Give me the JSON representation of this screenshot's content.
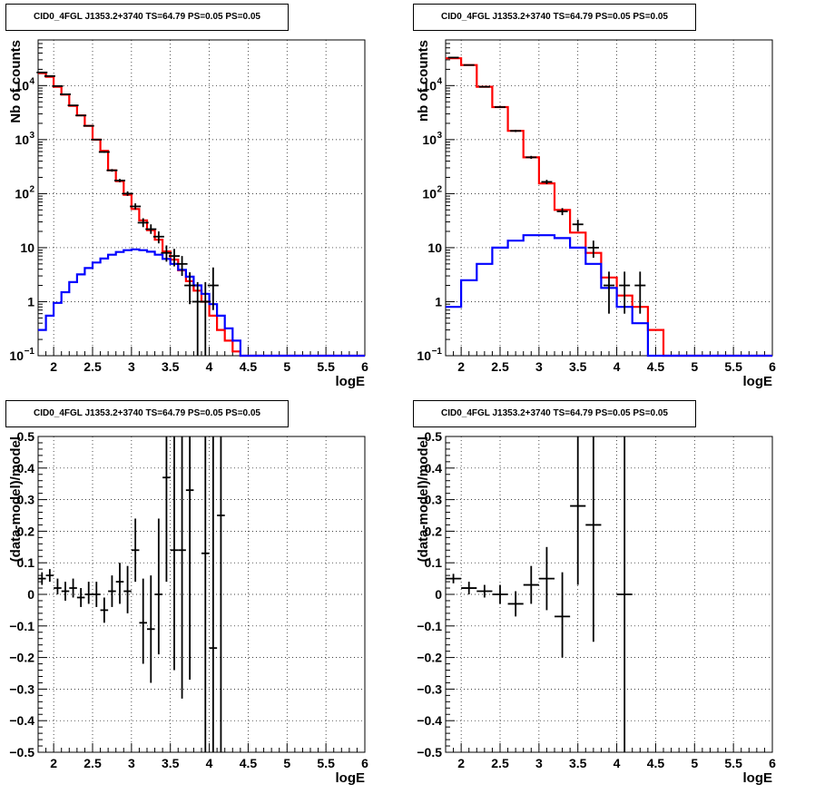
{
  "colors": {
    "data": "#000000",
    "total_model": "#ff0000",
    "source_model": "#0000ff",
    "grid": "#000000"
  },
  "chart_data": [
    {
      "type": "line",
      "title": "CID0_4FGL J1353.2+3740 TS=64.79 PS=0.05 PS=0.05",
      "xlabel": "logE",
      "ylabel": "Nb of counts",
      "xlim": [
        1.8,
        6
      ],
      "ylim": [
        0.1,
        70000
      ],
      "yscale": "log",
      "grid": true,
      "x_ticks": [
        "2",
        "2.5",
        "3",
        "3.5",
        "4",
        "4.5",
        "5",
        "5.5",
        "6"
      ],
      "y_ticks": [
        {
          "v": 0.1,
          "b": "10",
          "e": "−1"
        },
        {
          "v": 1,
          "b": "1",
          "e": ""
        },
        {
          "v": 10,
          "b": "10",
          "e": ""
        },
        {
          "v": 100,
          "b": "10",
          "e": "2"
        },
        {
          "v": 1000,
          "b": "10",
          "e": "3"
        },
        {
          "v": 10000,
          "b": "10",
          "e": "4"
        }
      ],
      "bin_edges": [
        1.8,
        1.9,
        2.0,
        2.1,
        2.2,
        2.3,
        2.4,
        2.5,
        2.6,
        2.7,
        2.8,
        2.9,
        3.0,
        3.1,
        3.2,
        3.3,
        3.4,
        3.5,
        3.6,
        3.7,
        3.8,
        3.9,
        4.0,
        4.1,
        4.2,
        4.3,
        4.4,
        4.5,
        4.6,
        4.7,
        4.8,
        4.9,
        5.0,
        5.1,
        5.2,
        5.3,
        5.4,
        5.5,
        5.6,
        5.7,
        5.8,
        5.9,
        6.0
      ],
      "series": [
        {
          "kind": "step",
          "color": "#ff0000",
          "values": [
            17000,
            14500,
            9500,
            6800,
            4200,
            2800,
            1800,
            1000,
            620,
            270,
            170,
            95,
            52,
            32,
            21,
            14,
            8.5,
            6,
            3.8,
            2.4,
            1.6,
            1.0,
            0.55,
            0.3,
            0.19,
            0.12,
            0.1,
            0.1,
            0.1,
            0.1,
            0.1,
            0.1,
            0.1,
            0.1,
            0.1,
            0.1,
            0.1,
            0.1,
            0.1,
            0.1,
            0.1,
            0.1
          ]
        },
        {
          "kind": "step",
          "color": "#0000ff",
          "values": [
            0.3,
            0.55,
            0.95,
            1.5,
            2.3,
            3.2,
            4.2,
            5.3,
            6.3,
            7.4,
            8.3,
            9.0,
            9.3,
            9.0,
            8.4,
            7.4,
            6.2,
            5.0,
            3.9,
            2.9,
            2.0,
            1.4,
            0.9,
            0.55,
            0.32,
            0.19,
            0.1,
            0.1,
            0.1,
            0.1,
            0.1,
            0.1,
            0.1,
            0.1,
            0.1,
            0.1,
            0.1,
            0.1,
            0.1,
            0.1,
            0.1,
            0.1
          ]
        },
        {
          "kind": "errorbars",
          "color": "#000000",
          "points": [
            {
              "x": 1.85,
              "y": 17500,
              "lo": 17300,
              "hi": 17700
            },
            {
              "x": 1.95,
              "y": 15000,
              "lo": 14800,
              "hi": 15200
            },
            {
              "x": 2.05,
              "y": 9800,
              "lo": 9600,
              "hi": 10000
            },
            {
              "x": 2.15,
              "y": 6900,
              "lo": 6750,
              "hi": 7050
            },
            {
              "x": 2.25,
              "y": 4300,
              "lo": 4200,
              "hi": 4400
            },
            {
              "x": 2.35,
              "y": 2800,
              "lo": 2740,
              "hi": 2860
            },
            {
              "x": 2.45,
              "y": 1800,
              "lo": 1760,
              "hi": 1840
            },
            {
              "x": 2.55,
              "y": 1000,
              "lo": 970,
              "hi": 1030
            },
            {
              "x": 2.65,
              "y": 590,
              "lo": 570,
              "hi": 610
            },
            {
              "x": 2.75,
              "y": 270,
              "lo": 255,
              "hi": 285
            },
            {
              "x": 2.85,
              "y": 175,
              "lo": 163,
              "hi": 187
            },
            {
              "x": 2.95,
              "y": 100,
              "lo": 91,
              "hi": 110
            },
            {
              "x": 3.05,
              "y": 58,
              "lo": 51,
              "hi": 66
            },
            {
              "x": 3.15,
              "y": 29,
              "lo": 24,
              "hi": 35
            },
            {
              "x": 3.25,
              "y": 22,
              "lo": 18,
              "hi": 27
            },
            {
              "x": 3.35,
              "y": 16,
              "lo": 12,
              "hi": 20
            },
            {
              "x": 3.45,
              "y": 8,
              "lo": 5.5,
              "hi": 11
            },
            {
              "x": 3.55,
              "y": 7,
              "lo": 4.5,
              "hi": 9.5
            },
            {
              "x": 3.65,
              "y": 5,
              "lo": 3,
              "hi": 7
            },
            {
              "x": 3.75,
              "y": 2,
              "lo": 0.9,
              "hi": 3.5
            },
            {
              "x": 3.85,
              "y": 1,
              "lo": 0.1,
              "hi": 2.3
            },
            {
              "x": 3.95,
              "y": 1,
              "lo": 0.1,
              "hi": 2.3
            },
            {
              "x": 4.05,
              "y": 2,
              "lo": 0.7,
              "hi": 4.3
            }
          ]
        }
      ]
    },
    {
      "type": "line",
      "title": "CID0_4FGL J1353.2+3740 TS=64.79 PS=0.05 PS=0.05",
      "xlabel": "logE",
      "ylabel": "nb of counts",
      "xlim": [
        1.8,
        6
      ],
      "ylim": [
        0.1,
        70000
      ],
      "yscale": "log",
      "grid": true,
      "x_ticks": [
        "2",
        "2.5",
        "3",
        "3.5",
        "4",
        "4.5",
        "5",
        "5.5",
        "6"
      ],
      "y_ticks": [
        {
          "v": 0.1,
          "b": "10",
          "e": "−1"
        },
        {
          "v": 1,
          "b": "1",
          "e": ""
        },
        {
          "v": 10,
          "b": "10",
          "e": ""
        },
        {
          "v": 100,
          "b": "10",
          "e": "2"
        },
        {
          "v": 1000,
          "b": "10",
          "e": "3"
        },
        {
          "v": 10000,
          "b": "10",
          "e": "4"
        }
      ],
      "bin_edges": [
        1.8,
        2.0,
        2.2,
        2.4,
        2.6,
        2.8,
        3.0,
        3.2,
        3.4,
        3.6,
        3.8,
        4.0,
        4.2,
        4.4,
        4.6,
        4.8,
        5.0,
        5.2,
        5.4,
        5.6,
        5.8,
        6.0
      ],
      "series": [
        {
          "kind": "step",
          "color": "#ff0000",
          "values": [
            32000,
            24000,
            9500,
            4000,
            1450,
            470,
            155,
            50,
            19,
            8,
            2.8,
            1.3,
            0.8,
            0.3,
            0.1,
            0.1,
            0.1,
            0.1,
            0.1,
            0.1,
            0.1
          ]
        },
        {
          "kind": "step",
          "color": "#0000ff",
          "values": [
            0.8,
            2.5,
            5.0,
            10,
            13.5,
            17,
            17,
            15,
            10,
            5,
            1.8,
            0.8,
            0.4,
            0.1,
            0.1,
            0.1,
            0.1,
            0.1,
            0.1,
            0.1,
            0.1
          ]
        },
        {
          "kind": "errorbars",
          "color": "#000000",
          "points": [
            {
              "x": 1.9,
              "y": 33000,
              "lo": 32600,
              "hi": 33400
            },
            {
              "x": 2.1,
              "y": 24000,
              "lo": 23700,
              "hi": 24300
            },
            {
              "x": 2.3,
              "y": 9500,
              "lo": 9300,
              "hi": 9700
            },
            {
              "x": 2.5,
              "y": 4000,
              "lo": 3870,
              "hi": 4130
            },
            {
              "x": 2.7,
              "y": 1450,
              "lo": 1380,
              "hi": 1520
            },
            {
              "x": 2.9,
              "y": 470,
              "lo": 440,
              "hi": 500
            },
            {
              "x": 3.1,
              "y": 165,
              "lo": 150,
              "hi": 180
            },
            {
              "x": 3.3,
              "y": 47,
              "lo": 40,
              "hi": 54
            },
            {
              "x": 3.5,
              "y": 27,
              "lo": 20,
              "hi": 33
            },
            {
              "x": 3.7,
              "y": 10,
              "lo": 6.5,
              "hi": 13.5
            },
            {
              "x": 3.9,
              "y": 2,
              "lo": 0.6,
              "hi": 3.6
            },
            {
              "x": 4.1,
              "y": 2,
              "lo": 0.6,
              "hi": 3.6
            },
            {
              "x": 4.3,
              "y": 2,
              "lo": 0.6,
              "hi": 3.6
            }
          ]
        }
      ]
    },
    {
      "type": "scatter",
      "title": "CID0_4FGL J1353.2+3740 TS=64.79 PS=0.05 PS=0.05",
      "xlabel": "logE",
      "ylabel": "(data-model)/model",
      "xlim": [
        1.8,
        6
      ],
      "ylim": [
        -0.5,
        0.5
      ],
      "yscale": "linear",
      "grid": true,
      "x_ticks": [
        "2",
        "2.5",
        "3",
        "3.5",
        "4",
        "4.5",
        "5",
        "5.5",
        "6"
      ],
      "y_ticks": [
        "−0.5",
        "−0.4",
        "−0.3",
        "−0.2",
        "−0.1",
        "0",
        "0.1",
        "0.2",
        "0.3",
        "0.4",
        "0.5"
      ],
      "series": [
        {
          "kind": "errorbars",
          "color": "#000000",
          "xerr": 0.05,
          "points": [
            {
              "x": 1.85,
              "y": 0.05,
              "lo": 0.03,
              "hi": 0.07
            },
            {
              "x": 1.95,
              "y": 0.06,
              "lo": 0.04,
              "hi": 0.08
            },
            {
              "x": 2.05,
              "y": 0.02,
              "lo": 0.0,
              "hi": 0.05
            },
            {
              "x": 2.15,
              "y": 0.01,
              "lo": -0.02,
              "hi": 0.04
            },
            {
              "x": 2.25,
              "y": 0.02,
              "lo": -0.01,
              "hi": 0.05
            },
            {
              "x": 2.35,
              "y": -0.01,
              "lo": -0.04,
              "hi": 0.02
            },
            {
              "x": 2.45,
              "y": 0.0,
              "lo": -0.03,
              "hi": 0.04
            },
            {
              "x": 2.55,
              "y": 0.0,
              "lo": -0.04,
              "hi": 0.04
            },
            {
              "x": 2.65,
              "y": -0.05,
              "lo": -0.09,
              "hi": -0.01
            },
            {
              "x": 2.75,
              "y": 0.01,
              "lo": -0.04,
              "hi": 0.06
            },
            {
              "x": 2.85,
              "y": 0.04,
              "lo": -0.03,
              "hi": 0.1
            },
            {
              "x": 2.95,
              "y": 0.01,
              "lo": -0.06,
              "hi": 0.09
            },
            {
              "x": 3.05,
              "y": 0.14,
              "lo": 0.04,
              "hi": 0.24
            },
            {
              "x": 3.15,
              "y": -0.09,
              "lo": -0.22,
              "hi": 0.05
            },
            {
              "x": 3.25,
              "y": -0.11,
              "lo": -0.28,
              "hi": 0.06
            },
            {
              "x": 3.35,
              "y": 0.0,
              "lo": -0.19,
              "hi": 0.24
            },
            {
              "x": 3.45,
              "y": 0.37,
              "lo": 0.04,
              "hi": 0.6
            },
            {
              "x": 3.55,
              "y": 0.14,
              "lo": -0.24,
              "hi": 0.6
            },
            {
              "x": 3.65,
              "y": 0.14,
              "lo": -0.33,
              "hi": 0.6
            },
            {
              "x": 3.75,
              "y": 0.33,
              "lo": -0.27,
              "hi": 0.6
            },
            {
              "x": 3.95,
              "y": 0.13,
              "lo": -0.6,
              "hi": 0.6
            },
            {
              "x": 4.05,
              "y": -0.17,
              "lo": -0.6,
              "hi": 0.6
            },
            {
              "x": 4.15,
              "y": 0.25,
              "lo": -0.6,
              "hi": 0.6
            }
          ]
        }
      ]
    },
    {
      "type": "scatter",
      "title": "CID0_4FGL J1353.2+3740 TS=64.79 PS=0.05 PS=0.05",
      "xlabel": "logE",
      "ylabel": "(data-model)/model",
      "xlim": [
        1.8,
        6
      ],
      "ylim": [
        -0.5,
        0.5
      ],
      "yscale": "linear",
      "grid": true,
      "x_ticks": [
        "2",
        "2.5",
        "3",
        "3.5",
        "4",
        "4.5",
        "5",
        "5.5",
        "6"
      ],
      "y_ticks": [
        "−0.5",
        "−0.4",
        "−0.3",
        "−0.2",
        "−0.1",
        "0",
        "0.1",
        "0.2",
        "0.3",
        "0.4",
        "0.5"
      ],
      "series": [
        {
          "kind": "errorbars",
          "color": "#000000",
          "xerr": 0.1,
          "points": [
            {
              "x": 1.9,
              "y": 0.05,
              "lo": 0.035,
              "hi": 0.065
            },
            {
              "x": 2.1,
              "y": 0.02,
              "lo": 0.0,
              "hi": 0.04
            },
            {
              "x": 2.3,
              "y": 0.01,
              "lo": -0.01,
              "hi": 0.03
            },
            {
              "x": 2.5,
              "y": 0.0,
              "lo": -0.03,
              "hi": 0.03
            },
            {
              "x": 2.7,
              "y": -0.03,
              "lo": -0.07,
              "hi": 0.01
            },
            {
              "x": 2.9,
              "y": 0.03,
              "lo": -0.03,
              "hi": 0.09
            },
            {
              "x": 3.1,
              "y": 0.05,
              "lo": -0.05,
              "hi": 0.15
            },
            {
              "x": 3.3,
              "y": -0.07,
              "lo": -0.2,
              "hi": 0.07
            },
            {
              "x": 3.5,
              "y": 0.28,
              "lo": 0.03,
              "hi": 0.52
            },
            {
              "x": 3.7,
              "y": 0.22,
              "lo": -0.15,
              "hi": 0.6
            },
            {
              "x": 4.1,
              "y": 0.0,
              "lo": -0.6,
              "hi": 0.6
            }
          ]
        }
      ]
    }
  ]
}
